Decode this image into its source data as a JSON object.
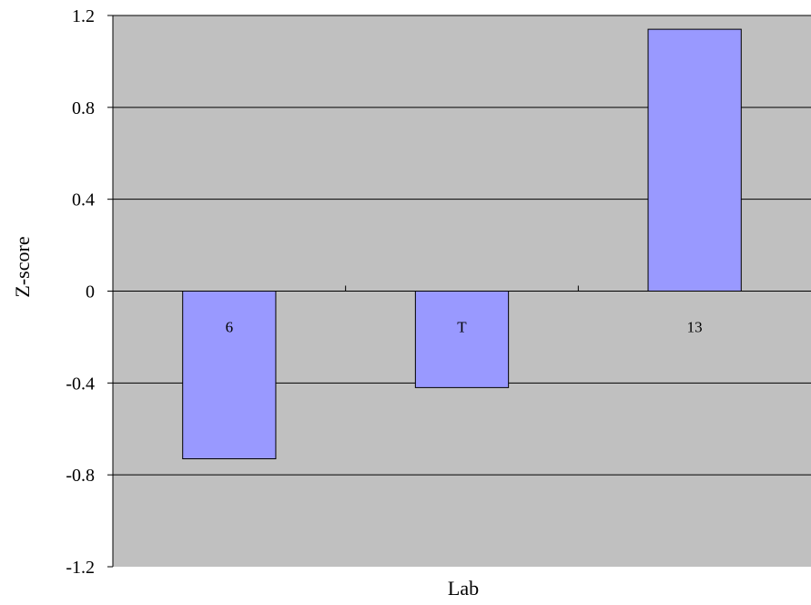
{
  "chart_data": {
    "type": "bar",
    "categories": [
      "6",
      "T",
      "13"
    ],
    "values": [
      -0.73,
      -0.42,
      1.14
    ],
    "xlabel": "Lab",
    "ylabel": "Z-score",
    "ylim": [
      -1.2,
      1.2
    ],
    "yticks": [
      "1.2",
      "0.8",
      "0.4",
      "0",
      "-0.4",
      "-0.8",
      "-1.2"
    ],
    "grid": true,
    "legend": "none",
    "colors": {
      "plot_background": "#c0c0c0",
      "bar_fill": "#9999ff",
      "bar_stroke": "#000000",
      "gridline": "#000000"
    }
  }
}
